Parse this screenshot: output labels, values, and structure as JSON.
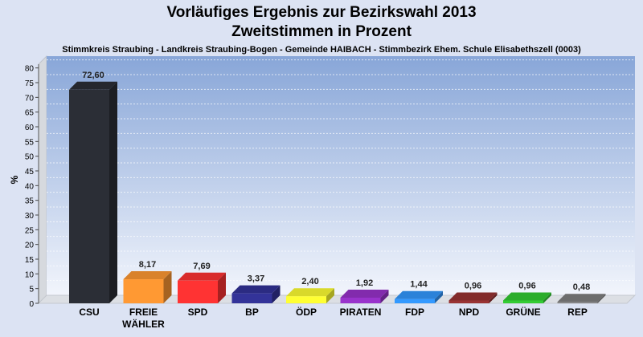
{
  "chart_data": {
    "type": "bar",
    "title": "Vorläufiges Ergebnis zur Bezirkswahl 2013",
    "title2": "Zweitstimmen in Prozent",
    "subtitle": "Stimmkreis Straubing - Landkreis Straubing-Bogen - Gemeinde HAIBACH - Stimmbezirk Ehem. Schule Elisabethszell (0003)",
    "xlabel": "",
    "ylabel": "%",
    "ylim": [
      0,
      84
    ],
    "yticks": [
      0,
      5,
      10,
      15,
      20,
      25,
      30,
      35,
      40,
      45,
      50,
      55,
      60,
      65,
      70,
      75,
      80
    ],
    "grid": true,
    "categories": [
      "CSU",
      "FREIE WÄHLER",
      "SPD",
      "BP",
      "ÖDP",
      "PIRATEN",
      "FDP",
      "NPD",
      "GRÜNE",
      "REP"
    ],
    "values": [
      72.6,
      8.17,
      7.69,
      3.37,
      2.4,
      1.92,
      1.44,
      0.96,
      0.96,
      0.48
    ],
    "value_labels": [
      "72,60",
      "8,17",
      "7,69",
      "3,37",
      "2,40",
      "1,92",
      "1,44",
      "0,96",
      "0,96",
      "0,48"
    ],
    "colors": [
      "#2b2e36",
      "#ff9933",
      "#ff3333",
      "#333399",
      "#ffff33",
      "#9933cc",
      "#3399ff",
      "#993333",
      "#33cc33",
      "#808080"
    ]
  }
}
